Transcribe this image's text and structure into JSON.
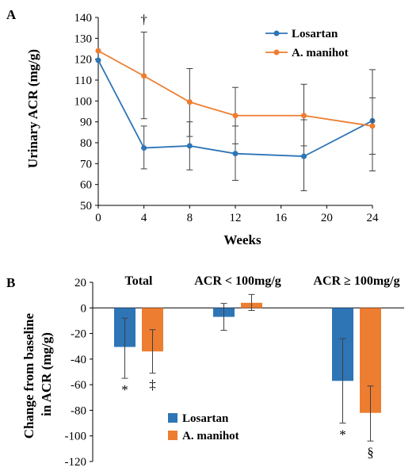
{
  "chart_data": [
    {
      "type": "line",
      "panel_label": "A",
      "xlabel": "Weeks",
      "ylabel": "Urinary ACR (mg/g)",
      "xlim": [
        0,
        24
      ],
      "ylim": [
        50,
        140
      ],
      "x_ticks": [
        0,
        4,
        8,
        12,
        16,
        20,
        24
      ],
      "y_ticks": [
        50,
        60,
        70,
        80,
        90,
        100,
        110,
        120,
        130,
        140
      ],
      "grid": false,
      "legend": "top-right",
      "series": [
        {
          "name": "Losartan",
          "color": "#2E75B6",
          "x": [
            0,
            4,
            8,
            12,
            18,
            24
          ],
          "y": [
            119.5,
            77.5,
            78.5,
            74.8,
            73.5,
            90.5
          ],
          "err_low": [
            0,
            67.5,
            67.0,
            62.0,
            57.0,
            66.5
          ],
          "err_high": [
            0,
            88.0,
            90.0,
            88.0,
            91.0,
            101.5
          ]
        },
        {
          "name": "A. manihot",
          "color": "#ED7D31",
          "x": [
            0,
            4,
            8,
            12,
            18,
            24
          ],
          "y": [
            124.0,
            112.0,
            99.5,
            93.0,
            93.0,
            88.0
          ],
          "err_low": [
            0,
            91.5,
            83.0,
            79.5,
            78.5,
            74.5
          ],
          "err_high": [
            0,
            133.0,
            115.5,
            106.5,
            108.0,
            115.0
          ]
        }
      ],
      "annotations": [
        {
          "text": "†",
          "x": 4
        }
      ]
    },
    {
      "type": "bar",
      "panel_label": "B",
      "ylabel": "Change from baseline in ACR (mg/g)",
      "ylim": [
        -120,
        20
      ],
      "y_ticks": [
        20,
        0,
        -20,
        -40,
        -60,
        -80,
        -100,
        -120
      ],
      "categories": [
        "Total",
        "ACR < 100mg/g",
        "ACR ≥ 100mg/g"
      ],
      "grid": false,
      "legend": "bottom-center",
      "series": [
        {
          "name": "Losartan",
          "color": "#2E75B6",
          "values": [
            -30.5,
            -7,
            -57
          ],
          "err_low": [
            -55,
            -17.5,
            -90
          ],
          "err_high": [
            -8,
            3.5,
            -24
          ],
          "annotations": [
            "*",
            "",
            "*"
          ]
        },
        {
          "name": "A. manihot",
          "color": "#ED7D31",
          "values": [
            -34,
            4,
            -82
          ],
          "err_low": [
            -51,
            -2,
            -104
          ],
          "err_high": [
            -17,
            10.5,
            -61
          ],
          "annotations": [
            "‡",
            "",
            "§"
          ]
        }
      ]
    }
  ]
}
